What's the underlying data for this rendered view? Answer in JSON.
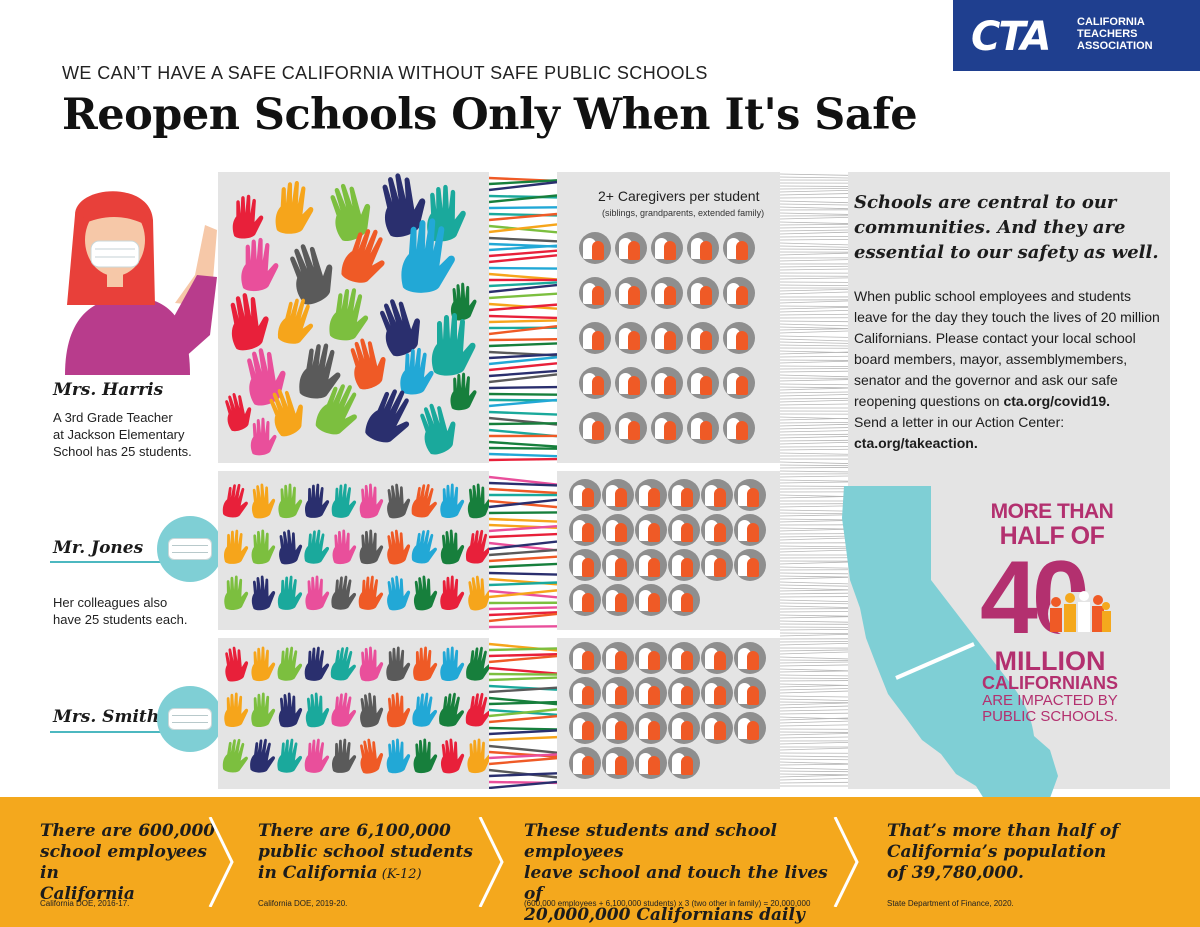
{
  "logo": {
    "mark": "CTA",
    "line1": "CALIFORNIA",
    "line2": "TEACHERS",
    "line3": "ASSOCIATION"
  },
  "header": {
    "subtitle": "WE CAN’T HAVE A SAFE CALIFORNIA WITHOUT SAFE PUBLIC SCHOOLS",
    "title": "Reopen Schools Only When It's Safe"
  },
  "teachers": [
    {
      "name": "Mrs. Harris",
      "desc1": "A 3rd Grade Teacher",
      "desc2": "at Jackson Elementary",
      "desc3": "School has 25 students."
    },
    {
      "name": "Mr. Jones",
      "desc1": "Her colleagues also",
      "desc2": "have 25 students each."
    },
    {
      "name": "Mrs. Smith"
    }
  ],
  "caregivers": {
    "label": "2+ Caregivers per student",
    "sub": "(siblings, grandparents, extended family)"
  },
  "side": {
    "heading": "Schools are central to our communities. And they are essential to our safety as well.",
    "body": "When public school employees and students leave for the day they touch the lives of 20 million Californians. Please contact your local school board members, mayor, assemblymembers, senator and the governor and ask our safe reopening questions on",
    "link1": "cta.org/covid19.",
    "body2": "Send a letter in our Action Center:",
    "link2": "cta.org/takeaction."
  },
  "stat": {
    "more": "MORE THAN",
    "half": "HALF OF",
    "number": "40",
    "million": "MILLION",
    "californians": "CALIFORNIANS",
    "impacted1": "ARE IMPACTED BY",
    "impacted2": "PUBLIC SCHOOLS."
  },
  "footer": [
    {
      "l1": "There are 600,000",
      "l2": "school employees in",
      "l3": "California",
      "l3b": "",
      "src": "California DOE, 2016-17."
    },
    {
      "l1": "There are 6,100,000",
      "l2": "public school students",
      "l3": "in California",
      "l3b": " (K-12)",
      "src": "California DOE, 2019-20."
    },
    {
      "l1": "These students and school employees",
      "l2": "leave school and touch the lives of",
      "l3": "20,000,000 Californians daily",
      "l3b": "",
      "src": "(600,000 employees + 6,100,000 students) x 3 (two other in family) = 20,000,000"
    },
    {
      "l1": "That’s more than half of",
      "l2": "California’s population",
      "l3": "of 39,780,000.",
      "l3b": "",
      "src": "State Department of Finance, 2020."
    }
  ],
  "colors": {
    "brand_blue": "#1f3f8f",
    "panel_grey": "#e4e4e4",
    "accent_magenta": "#b3306f",
    "california_teal": "#7fcfd5",
    "caregiver_orange": "#ef5a26",
    "footer_orange": "#f4a81d",
    "hand_palette": [
      "#e8203a",
      "#f6a51b",
      "#7cbf3f",
      "#2a2f6e",
      "#1aa99c",
      "#e94f9b",
      "#5a5a5a",
      "#ef5a26",
      "#22a8d6",
      "#177f3c"
    ]
  }
}
